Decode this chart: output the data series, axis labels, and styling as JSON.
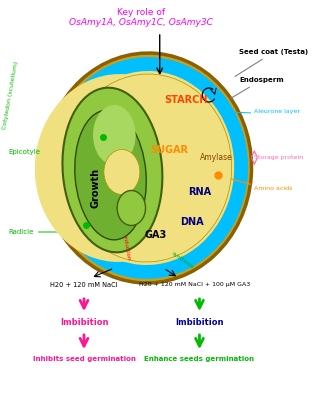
{
  "title_line1": "Key role of",
  "title_line2": "OsAmy1A, OsAmy1C, OsAmy3C",
  "title_color": "magenta",
  "bg_color": "white",
  "seed_coat_color": "#C8A020",
  "endosperm_color": "#F0E080",
  "aleurone_color": "#00BFFF",
  "embryo_outer_color": "#90C840",
  "embryo_inner_color": "#70B030",
  "embryo_notch_color": "#A8D860",
  "labels": {
    "seed_coat": "Seed coat (Testa)",
    "endosperm": "Endosperm",
    "aleurone": "Aleurone layer",
    "storage_protein": "Storage protein",
    "amino_acids": "Amino acids",
    "cotyledon": "Cotyledon (scutellum)",
    "epicotyle": "Epicotyle",
    "radicle": "Radicle",
    "starch": "STARCH",
    "sugar": "SUGAR",
    "amylase": "Amylase",
    "rna": "RNA",
    "dna": "DNA",
    "growth": "Growth",
    "ga3": "GA3"
  },
  "bottom_left_label": "H20 + 120 mM NaCl",
  "bottom_right_label": "H20 + 120 mM NaCl + 100 μM GA3",
  "imbibition_left": "Imbibition",
  "imbibition_right": "Imbibition",
  "result_left": "Inhibits seed germination",
  "result_right": "Enhance seeds germination",
  "inhibition_color": "#FF1493",
  "enhancement_color": "#00BB00",
  "imbibition_right_color": "#000099"
}
